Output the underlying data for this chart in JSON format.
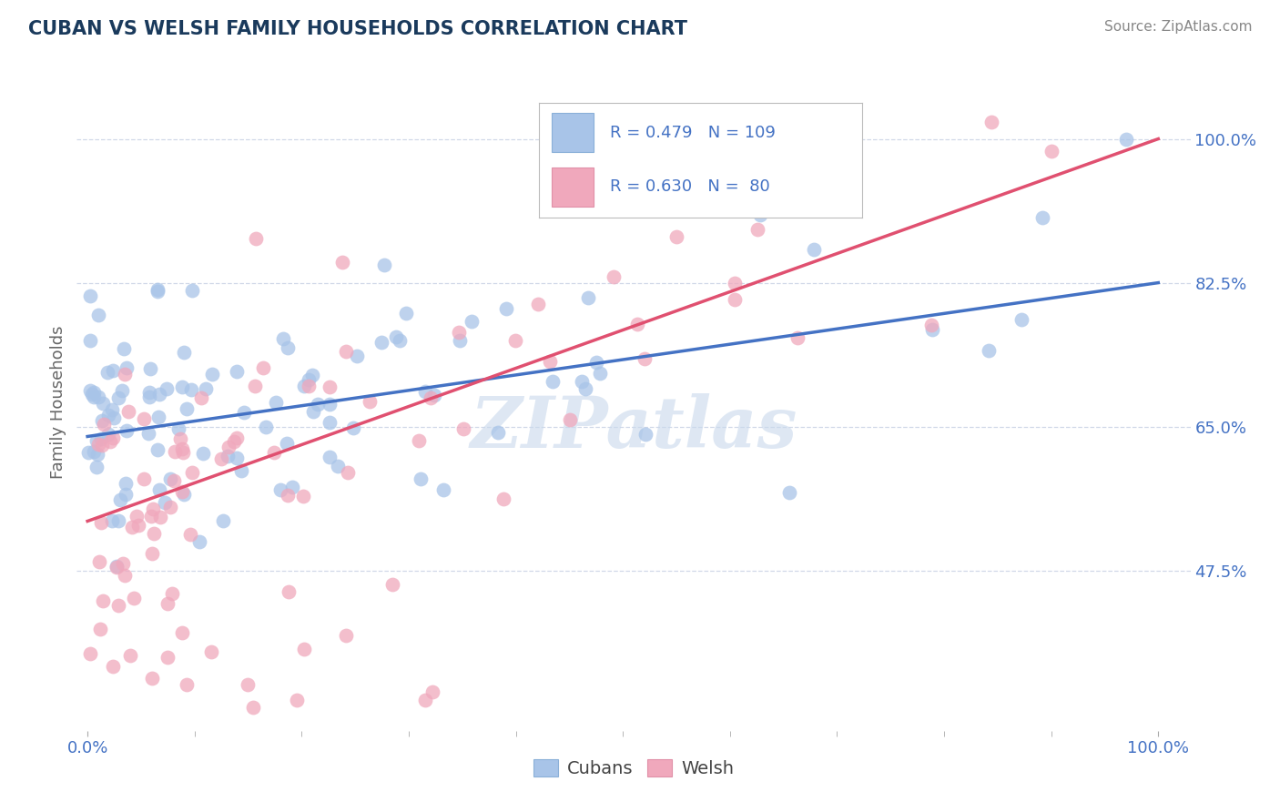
{
  "title": "CUBAN VS WELSH FAMILY HOUSEHOLDS CORRELATION CHART",
  "source": "Source: ZipAtlas.com",
  "ylabel": "Family Households",
  "xlim": [
    -0.01,
    1.03
  ],
  "ylim": [
    0.28,
    1.08
  ],
  "ytick_labels_right": [
    0.475,
    0.65,
    0.825,
    1.0
  ],
  "ytick_labels_right_str": [
    "47.5%",
    "65.0%",
    "82.5%",
    "100.0%"
  ],
  "cubans_R": 0.479,
  "cubans_N": 109,
  "welsh_R": 0.63,
  "welsh_N": 80,
  "cubans_color": "#a8c4e8",
  "welsh_color": "#f0a8bc",
  "cubans_line_color": "#4472c4",
  "welsh_line_color": "#e05070",
  "title_color": "#1a3a5c",
  "axis_tick_color": "#4472c4",
  "text_color": "#333333",
  "grid_color": "#d0d8e8",
  "watermark": "ZIPatlas",
  "legend_R_color": "#4472c4",
  "legend_N_color": "#4472c4",
  "cubans_line_intercept": 0.638,
  "cubans_line_slope": 0.187,
  "welsh_line_intercept": 0.535,
  "welsh_line_slope": 0.465,
  "seed_cubans": 77,
  "seed_welsh": 55
}
